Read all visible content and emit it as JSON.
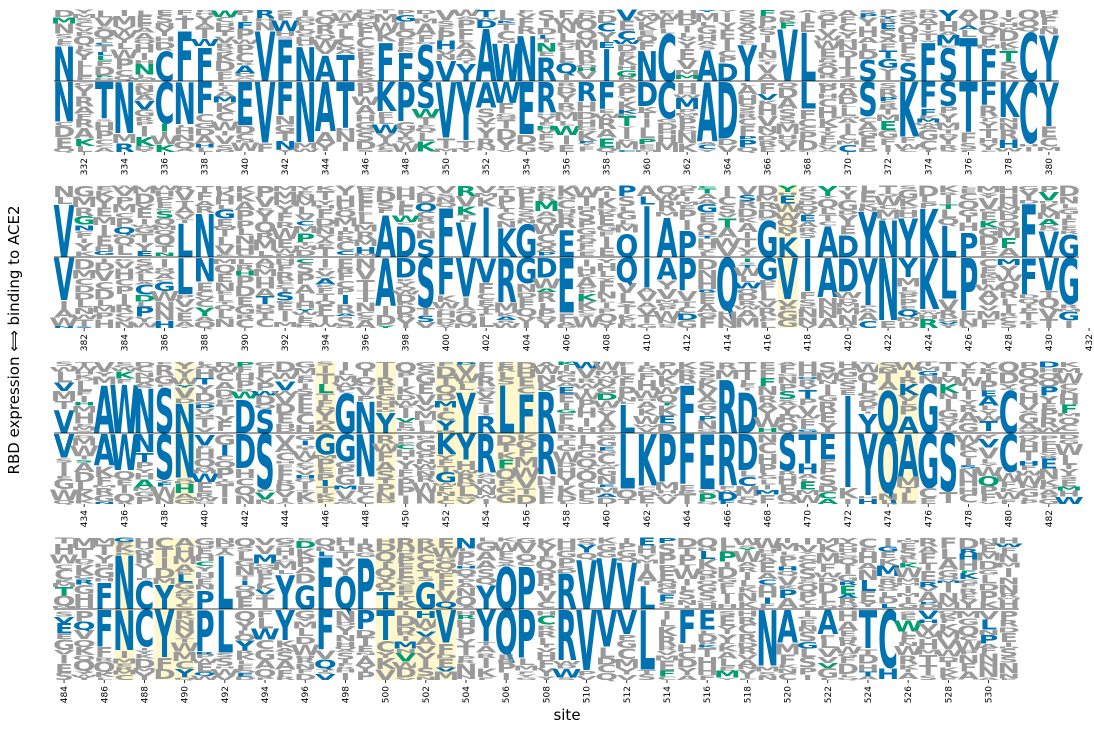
{
  "chart_data": {
    "type": "logo",
    "title": "",
    "xlabel": "site",
    "ylabel": "RBD expression ⟺ binding to ACE2",
    "colors": {
      "highlighted": "#0072B2",
      "secondary": "#009E73",
      "other": "#999999",
      "shading": "#FFF8CC",
      "midline": "#000000"
    },
    "rows": [
      {
        "start": 331,
        "end": 380,
        "ticks": [
          332,
          334,
          336,
          338,
          340,
          342,
          344,
          346,
          348,
          350,
          352,
          354,
          356,
          358,
          360,
          362,
          364,
          366,
          368,
          370,
          372,
          374,
          376,
          378,
          380
        ],
        "shaded": [],
        "top": [
          [
            331,
            "N"
          ],
          [
            336,
            "C"
          ],
          [
            337,
            "F"
          ],
          [
            338,
            "F"
          ],
          [
            341,
            "V"
          ],
          [
            342,
            "F"
          ],
          [
            343,
            "N"
          ],
          [
            344,
            "A"
          ],
          [
            345,
            "T"
          ],
          [
            347,
            "F"
          ],
          [
            348,
            "F"
          ],
          [
            349,
            "S"
          ],
          [
            350,
            "V"
          ],
          [
            351,
            "Y"
          ],
          [
            352,
            "A"
          ],
          [
            353,
            "W"
          ],
          [
            354,
            "N"
          ],
          [
            355,
            "R"
          ],
          [
            358,
            "I"
          ],
          [
            360,
            "N"
          ],
          [
            361,
            "C"
          ],
          [
            363,
            "A"
          ],
          [
            364,
            "D"
          ],
          [
            365,
            "Y"
          ],
          [
            367,
            "V"
          ],
          [
            368,
            "L"
          ],
          [
            371,
            "S"
          ],
          [
            373,
            "S"
          ],
          [
            374,
            "F"
          ],
          [
            375,
            "S"
          ],
          [
            376,
            "T"
          ],
          [
            377,
            "F"
          ],
          [
            379,
            "C"
          ],
          [
            380,
            "Y"
          ]
        ],
        "bottom": [
          [
            331,
            "N"
          ],
          [
            333,
            "T"
          ],
          [
            334,
            "N"
          ],
          [
            336,
            "C"
          ],
          [
            337,
            "N"
          ],
          [
            338,
            "F"
          ],
          [
            340,
            "E"
          ],
          [
            341,
            "V"
          ],
          [
            342,
            "F"
          ],
          [
            343,
            "N"
          ],
          [
            344,
            "A"
          ],
          [
            345,
            "T"
          ],
          [
            347,
            "K"
          ],
          [
            348,
            "P"
          ],
          [
            349,
            "S"
          ],
          [
            350,
            "V"
          ],
          [
            351,
            "Y"
          ],
          [
            352,
            "A"
          ],
          [
            353,
            "W"
          ],
          [
            354,
            "E"
          ],
          [
            355,
            "R"
          ],
          [
            357,
            "R"
          ],
          [
            358,
            "F"
          ],
          [
            360,
            "D"
          ],
          [
            361,
            "C"
          ],
          [
            363,
            "A"
          ],
          [
            364,
            "D"
          ],
          [
            368,
            "L"
          ],
          [
            371,
            "S"
          ],
          [
            373,
            "K"
          ],
          [
            374,
            "F"
          ],
          [
            375,
            "S"
          ],
          [
            376,
            "T"
          ],
          [
            377,
            "F"
          ],
          [
            378,
            "K"
          ],
          [
            379,
            "C"
          ],
          [
            380,
            "Y"
          ]
        ]
      },
      {
        "start": 381,
        "end": 431,
        "ticks": [
          382,
          384,
          386,
          388,
          390,
          392,
          394,
          396,
          398,
          400,
          402,
          404,
          406,
          408,
          410,
          412,
          414,
          416,
          418,
          420,
          422,
          424,
          426,
          428,
          430,
          432
        ],
        "shaded": [
          417
        ],
        "top": [
          [
            381,
            "V"
          ],
          [
            387,
            "L"
          ],
          [
            388,
            "N"
          ],
          [
            397,
            "A"
          ],
          [
            398,
            "D"
          ],
          [
            399,
            "S"
          ],
          [
            400,
            "F"
          ],
          [
            401,
            "V"
          ],
          [
            402,
            "I"
          ],
          [
            403,
            "K"
          ],
          [
            404,
            "G"
          ],
          [
            406,
            "E"
          ],
          [
            409,
            "Q"
          ],
          [
            410,
            "I"
          ],
          [
            411,
            "A"
          ],
          [
            412,
            "P"
          ],
          [
            416,
            "G"
          ],
          [
            417,
            "K"
          ],
          [
            418,
            "I"
          ],
          [
            419,
            "A"
          ],
          [
            420,
            "D"
          ],
          [
            421,
            "Y"
          ],
          [
            422,
            "N"
          ],
          [
            423,
            "Y"
          ],
          [
            424,
            "K"
          ],
          [
            425,
            "L"
          ],
          [
            426,
            "P"
          ],
          [
            429,
            "F"
          ],
          [
            430,
            "V"
          ],
          [
            431,
            "G"
          ],
          [
            432,
            "C"
          ]
        ],
        "bottom": [
          [
            381,
            "V"
          ],
          [
            387,
            "L"
          ],
          [
            388,
            "N"
          ],
          [
            397,
            "A"
          ],
          [
            398,
            "D"
          ],
          [
            399,
            "S"
          ],
          [
            400,
            "F"
          ],
          [
            401,
            "V"
          ],
          [
            402,
            "V"
          ],
          [
            403,
            "R"
          ],
          [
            404,
            "G"
          ],
          [
            405,
            "D"
          ],
          [
            406,
            "E"
          ],
          [
            409,
            "Q"
          ],
          [
            410,
            "I"
          ],
          [
            411,
            "A"
          ],
          [
            412,
            "P"
          ],
          [
            414,
            "Q"
          ],
          [
            416,
            "G"
          ],
          [
            417,
            "V"
          ],
          [
            418,
            "I"
          ],
          [
            419,
            "A"
          ],
          [
            420,
            "D"
          ],
          [
            421,
            "Y"
          ],
          [
            422,
            "N"
          ],
          [
            423,
            "Y"
          ],
          [
            424,
            "K"
          ],
          [
            425,
            "L"
          ],
          [
            426,
            "P"
          ],
          [
            429,
            "F"
          ],
          [
            430,
            "V"
          ],
          [
            431,
            "G"
          ],
          [
            432,
            "C"
          ]
        ]
      },
      {
        "start": 433,
        "end": 483,
        "ticks": [
          434,
          436,
          438,
          440,
          442,
          444,
          446,
          448,
          450,
          452,
          454,
          456,
          458,
          460,
          462,
          464,
          466,
          468,
          470,
          472,
          474,
          476,
          478,
          480,
          482
        ],
        "shaded": [
          439,
          446,
          449,
          452,
          453,
          455,
          456,
          474,
          475
        ],
        "top": [
          [
            433,
            "V"
          ],
          [
            435,
            "A"
          ],
          [
            436,
            "W"
          ],
          [
            437,
            "N"
          ],
          [
            438,
            "S"
          ],
          [
            439,
            "N"
          ],
          [
            442,
            "D"
          ],
          [
            443,
            "S"
          ],
          [
            447,
            "G"
          ],
          [
            448,
            "N"
          ],
          [
            449,
            "Y"
          ],
          [
            453,
            "Y"
          ],
          [
            454,
            "R"
          ],
          [
            455,
            "L"
          ],
          [
            456,
            "F"
          ],
          [
            457,
            "R"
          ],
          [
            461,
            "L"
          ],
          [
            464,
            "F"
          ],
          [
            466,
            "R"
          ],
          [
            467,
            "D"
          ],
          [
            472,
            "I"
          ],
          [
            473,
            "Y"
          ],
          [
            474,
            "Q"
          ],
          [
            475,
            "A"
          ],
          [
            476,
            "G"
          ],
          [
            480,
            "C"
          ]
        ],
        "bottom": [
          [
            433,
            "V"
          ],
          [
            435,
            "A"
          ],
          [
            436,
            "W"
          ],
          [
            437,
            "N"
          ],
          [
            438,
            "S"
          ],
          [
            439,
            "N"
          ],
          [
            442,
            "D"
          ],
          [
            443,
            "S"
          ],
          [
            446,
            "G"
          ],
          [
            447,
            "G"
          ],
          [
            448,
            "N"
          ],
          [
            452,
            "K"
          ],
          [
            453,
            "Y"
          ],
          [
            454,
            "R"
          ],
          [
            457,
            "R"
          ],
          [
            461,
            "L"
          ],
          [
            462,
            "K"
          ],
          [
            463,
            "P"
          ],
          [
            464,
            "F"
          ],
          [
            465,
            "E"
          ],
          [
            466,
            "R"
          ],
          [
            467,
            "D"
          ],
          [
            469,
            "S"
          ],
          [
            470,
            "T"
          ],
          [
            471,
            "E"
          ],
          [
            472,
            "I"
          ],
          [
            473,
            "Y"
          ],
          [
            474,
            "Q"
          ],
          [
            475,
            "A"
          ],
          [
            476,
            "G"
          ],
          [
            477,
            "S"
          ],
          [
            480,
            "C"
          ]
        ]
      },
      {
        "start": 484,
        "end": 531,
        "ticks": [
          484,
          486,
          488,
          490,
          492,
          494,
          496,
          498,
          500,
          502,
          504,
          506,
          508,
          510,
          512,
          514,
          516,
          518,
          520,
          522,
          524,
          526,
          528,
          530
        ],
        "shaded": [
          487,
          489,
          490,
          500,
          501,
          502,
          503
        ],
        "top": [
          [
            486,
            "F"
          ],
          [
            487,
            "N"
          ],
          [
            488,
            "C"
          ],
          [
            489,
            "Y"
          ],
          [
            491,
            "P"
          ],
          [
            492,
            "L"
          ],
          [
            495,
            "Y"
          ],
          [
            496,
            "G"
          ],
          [
            497,
            "F"
          ],
          [
            498,
            "Q"
          ],
          [
            499,
            "P"
          ],
          [
            500,
            "T"
          ],
          [
            502,
            "G"
          ],
          [
            505,
            "Y"
          ],
          [
            506,
            "Q"
          ],
          [
            507,
            "P"
          ],
          [
            509,
            "R"
          ],
          [
            510,
            "V"
          ],
          [
            511,
            "V"
          ],
          [
            512,
            "V"
          ],
          [
            513,
            "L"
          ]
        ],
        "bottom": [
          [
            486,
            "F"
          ],
          [
            487,
            "N"
          ],
          [
            488,
            "C"
          ],
          [
            489,
            "Y"
          ],
          [
            491,
            "P"
          ],
          [
            492,
            "L"
          ],
          [
            495,
            "Y"
          ],
          [
            497,
            "F"
          ],
          [
            499,
            "P"
          ],
          [
            500,
            "T"
          ],
          [
            503,
            "V"
          ],
          [
            505,
            "Y"
          ],
          [
            506,
            "Q"
          ],
          [
            507,
            "P"
          ],
          [
            509,
            "R"
          ],
          [
            510,
            "V"
          ],
          [
            511,
            "V"
          ],
          [
            512,
            "V"
          ],
          [
            513,
            "L"
          ],
          [
            515,
            "F"
          ],
          [
            516,
            "E"
          ],
          [
            519,
            "N"
          ],
          [
            520,
            "A"
          ],
          [
            522,
            "A"
          ],
          [
            524,
            "T"
          ],
          [
            525,
            "C"
          ]
        ]
      }
    ]
  }
}
